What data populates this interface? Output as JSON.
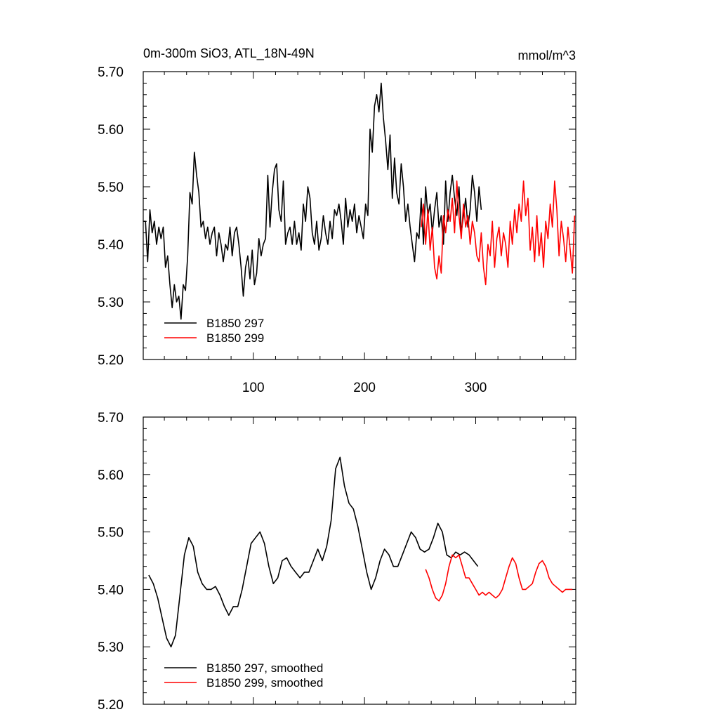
{
  "header": {
    "title": "0m-300m SiO3, ATL_18N-49N",
    "units": "mmol/m^3"
  },
  "chart_data": [
    {
      "type": "line",
      "title": "0m-300m SiO3, ATL_18N-49N",
      "units": "mmol/m^3",
      "xlim": [
        1,
        390
      ],
      "ylim": [
        5.2,
        5.7
      ],
      "xticks": [
        100,
        200,
        300
      ],
      "xtick_labels": [
        "100",
        "200",
        "300"
      ],
      "yticks": [
        5.2,
        5.3,
        5.4,
        5.5,
        5.6,
        5.7
      ],
      "ytick_labels": [
        "5.20",
        "5.30",
        "5.40",
        "5.50",
        "5.60",
        "5.70"
      ],
      "legend_position": "bottom-left",
      "series": [
        {
          "name": "B1850 297",
          "color": "#000000",
          "x": [
            1,
            3,
            5,
            7,
            9,
            11,
            13,
            15,
            17,
            19,
            21,
            23,
            25,
            27,
            29,
            31,
            33,
            35,
            37,
            39,
            41,
            43,
            45,
            47,
            49,
            51,
            53,
            55,
            57,
            59,
            61,
            63,
            65,
            67,
            69,
            71,
            73,
            75,
            77,
            79,
            81,
            83,
            85,
            87,
            89,
            91,
            93,
            95,
            97,
            99,
            101,
            103,
            105,
            107,
            109,
            111,
            113,
            115,
            117,
            119,
            121,
            123,
            125,
            127,
            129,
            131,
            133,
            135,
            137,
            139,
            141,
            143,
            145,
            147,
            149,
            151,
            153,
            155,
            157,
            159,
            161,
            163,
            165,
            167,
            169,
            171,
            173,
            175,
            177,
            179,
            181,
            183,
            185,
            187,
            189,
            191,
            193,
            195,
            197,
            199,
            201,
            203,
            205,
            207,
            209,
            211,
            213,
            215,
            217,
            219,
            221,
            223,
            225,
            227,
            229,
            231,
            233,
            235,
            237,
            239,
            241,
            243,
            245,
            247,
            249,
            251,
            253,
            255,
            257,
            259,
            261,
            263,
            265,
            267,
            269,
            271,
            273,
            275,
            277,
            279,
            281,
            283,
            285,
            287,
            289,
            291,
            293,
            295,
            297,
            299,
            301,
            303,
            305
          ],
          "y": [
            5.44,
            5.44,
            5.37,
            5.46,
            5.42,
            5.44,
            5.4,
            5.43,
            5.41,
            5.43,
            5.36,
            5.38,
            5.33,
            5.29,
            5.33,
            5.3,
            5.31,
            5.27,
            5.33,
            5.32,
            5.38,
            5.49,
            5.47,
            5.56,
            5.52,
            5.49,
            5.43,
            5.44,
            5.41,
            5.43,
            5.4,
            5.42,
            5.43,
            5.38,
            5.42,
            5.4,
            5.37,
            5.4,
            5.39,
            5.43,
            5.38,
            5.42,
            5.43,
            5.4,
            5.36,
            5.31,
            5.36,
            5.38,
            5.34,
            5.39,
            5.33,
            5.35,
            5.41,
            5.38,
            5.4,
            5.41,
            5.52,
            5.43,
            5.49,
            5.53,
            5.54,
            5.46,
            5.44,
            5.51,
            5.4,
            5.42,
            5.43,
            5.4,
            5.44,
            5.4,
            5.42,
            5.39,
            5.47,
            5.44,
            5.5,
            5.48,
            5.42,
            5.4,
            5.44,
            5.39,
            5.41,
            5.45,
            5.42,
            5.4,
            5.44,
            5.41,
            5.46,
            5.45,
            5.47,
            5.44,
            5.4,
            5.48,
            5.43,
            5.46,
            5.44,
            5.47,
            5.42,
            5.45,
            5.43,
            5.41,
            5.47,
            5.45,
            5.6,
            5.56,
            5.64,
            5.66,
            5.63,
            5.68,
            5.62,
            5.58,
            5.53,
            5.59,
            5.48,
            5.55,
            5.49,
            5.47,
            5.54,
            5.5,
            5.44,
            5.47,
            5.43,
            5.4,
            5.37,
            5.42,
            5.41,
            5.48,
            5.4,
            5.5,
            5.45,
            5.47,
            5.42,
            5.46,
            5.49,
            5.43,
            5.45,
            5.4,
            5.51,
            5.44,
            5.49,
            5.52,
            5.48,
            5.45,
            5.5,
            5.42,
            5.45,
            5.48,
            5.43,
            5.46,
            5.52,
            5.49,
            5.44,
            5.5,
            5.46
          ],
          "values_note_x": "x is simulation year"
        },
        {
          "name": "B1850 299",
          "color": "#ff0000",
          "x": [
            251,
            253,
            255,
            257,
            259,
            261,
            263,
            265,
            267,
            269,
            271,
            273,
            275,
            277,
            279,
            281,
            283,
            285,
            287,
            289,
            291,
            293,
            295,
            297,
            299,
            301,
            303,
            305,
            307,
            309,
            311,
            313,
            315,
            317,
            319,
            321,
            323,
            325,
            327,
            329,
            331,
            333,
            335,
            337,
            339,
            341,
            343,
            345,
            347,
            349,
            351,
            353,
            355,
            357,
            359,
            361,
            363,
            365,
            367,
            369,
            371,
            373,
            375,
            377,
            379,
            381,
            383,
            385,
            387,
            389
          ],
          "y": [
            5.43,
            5.47,
            5.4,
            5.46,
            5.39,
            5.43,
            5.36,
            5.34,
            5.38,
            5.35,
            5.45,
            5.42,
            5.46,
            5.44,
            5.48,
            5.42,
            5.51,
            5.45,
            5.41,
            5.47,
            5.43,
            5.45,
            5.4,
            5.44,
            5.42,
            5.38,
            5.37,
            5.42,
            5.36,
            5.33,
            5.4,
            5.38,
            5.44,
            5.36,
            5.41,
            5.43,
            5.38,
            5.42,
            5.4,
            5.36,
            5.44,
            5.4,
            5.46,
            5.42,
            5.47,
            5.44,
            5.51,
            5.45,
            5.48,
            5.39,
            5.43,
            5.37,
            5.45,
            5.38,
            5.42,
            5.36,
            5.44,
            5.41,
            5.47,
            5.43,
            5.51,
            5.46,
            5.38,
            5.44,
            5.41,
            5.37,
            5.43,
            5.39,
            5.35,
            5.45
          ]
        }
      ]
    },
    {
      "type": "line",
      "xlim": [
        1,
        390
      ],
      "ylim": [
        5.2,
        5.7
      ],
      "yticks": [
        5.2,
        5.3,
        5.4,
        5.5,
        5.6,
        5.7
      ],
      "ytick_labels": [
        "5.20",
        "5.30",
        "5.40",
        "5.50",
        "5.60",
        "5.70"
      ],
      "legend_position": "bottom-left",
      "series": [
        {
          "name": "B1850 297, smoothed",
          "color": "#000000",
          "x": [
            6,
            10,
            14,
            18,
            22,
            26,
            30,
            34,
            38,
            42,
            46,
            50,
            54,
            58,
            62,
            66,
            70,
            74,
            78,
            82,
            86,
            90,
            94,
            98,
            102,
            106,
            110,
            114,
            118,
            122,
            126,
            130,
            134,
            138,
            142,
            146,
            150,
            154,
            158,
            162,
            166,
            170,
            174,
            178,
            182,
            186,
            190,
            194,
            198,
            202,
            206,
            210,
            214,
            218,
            222,
            226,
            230,
            234,
            238,
            242,
            246,
            250,
            254,
            258,
            262,
            266,
            270,
            274,
            278,
            282,
            286,
            290,
            294,
            298,
            302
          ],
          "y": [
            5.425,
            5.41,
            5.385,
            5.35,
            5.315,
            5.3,
            5.32,
            5.39,
            5.46,
            5.49,
            5.475,
            5.43,
            5.41,
            5.4,
            5.4,
            5.405,
            5.39,
            5.37,
            5.355,
            5.37,
            5.37,
            5.4,
            5.44,
            5.48,
            5.49,
            5.5,
            5.48,
            5.44,
            5.41,
            5.42,
            5.45,
            5.455,
            5.44,
            5.43,
            5.42,
            5.43,
            5.43,
            5.45,
            5.47,
            5.45,
            5.475,
            5.52,
            5.61,
            5.63,
            5.58,
            5.55,
            5.54,
            5.51,
            5.47,
            5.43,
            5.4,
            5.42,
            5.45,
            5.47,
            5.46,
            5.44,
            5.44,
            5.46,
            5.48,
            5.5,
            5.49,
            5.47,
            5.465,
            5.47,
            5.49,
            5.515,
            5.5,
            5.46,
            5.455,
            5.465,
            5.46,
            5.465,
            5.46,
            5.45,
            5.44
          ]
        },
        {
          "name": "B1850 299, smoothed",
          "color": "#ff0000",
          "x": [
            255,
            258,
            261,
            264,
            267,
            270,
            273,
            276,
            279,
            282,
            285,
            288,
            291,
            294,
            297,
            300,
            303,
            306,
            309,
            312,
            315,
            318,
            321,
            324,
            327,
            330,
            333,
            336,
            339,
            342,
            345,
            348,
            351,
            354,
            357,
            360,
            363,
            366,
            369,
            372,
            375,
            378,
            381,
            384,
            387
          ],
          "y": [
            5.435,
            5.42,
            5.4,
            5.385,
            5.38,
            5.39,
            5.41,
            5.44,
            5.46,
            5.455,
            5.46,
            5.44,
            5.42,
            5.42,
            5.41,
            5.4,
            5.39,
            5.395,
            5.39,
            5.395,
            5.39,
            5.385,
            5.39,
            5.4,
            5.42,
            5.44,
            5.455,
            5.445,
            5.42,
            5.4,
            5.4,
            5.405,
            5.41,
            5.43,
            5.445,
            5.45,
            5.44,
            5.42,
            5.41,
            5.405,
            5.4,
            5.395,
            5.4,
            5.4,
            5.4
          ]
        }
      ]
    }
  ]
}
